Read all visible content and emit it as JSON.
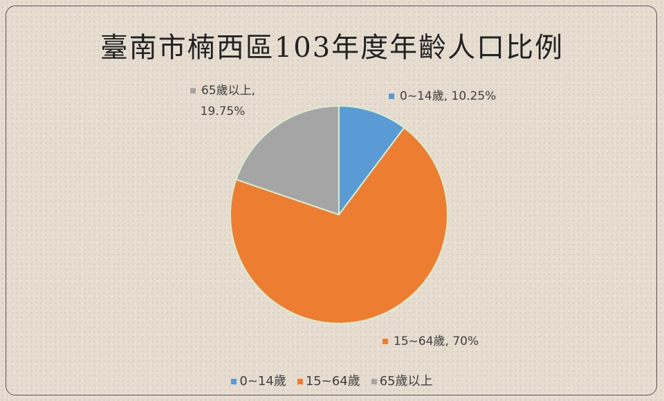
{
  "chart_data": {
    "type": "pie",
    "title": "臺南市楠西區103年度年齡人口比例",
    "categories": [
      "0~14歲",
      "15~64歲",
      "65歲以上"
    ],
    "values": [
      10.25,
      70,
      19.75
    ],
    "value_labels": [
      "0~14歲, 10.25%",
      "15~64歲, 70%",
      "65歲以上, 19.75%"
    ],
    "colors": [
      "#5b9bd5",
      "#ed7d31",
      "#a5a5a5"
    ],
    "legend": "bottom"
  }
}
